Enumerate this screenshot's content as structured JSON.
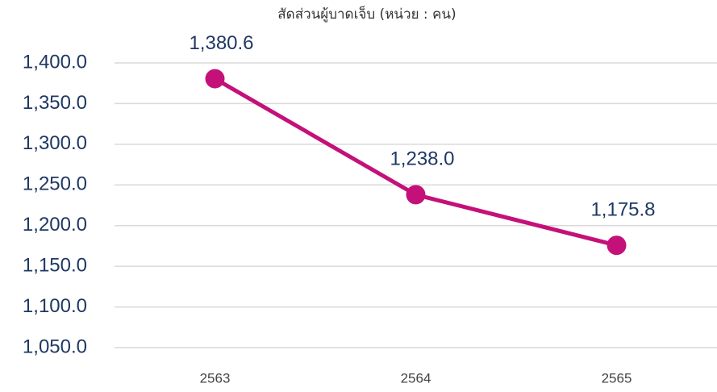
{
  "chart_data": {
    "type": "line",
    "title": "สัดส่วนผู้บาดเจ็บ (หน่วย : คน)",
    "categories": [
      "2563",
      "2564",
      "2565"
    ],
    "series": [
      {
        "name": "สัดส่วนผู้บาดเจ็บ",
        "color": "#c4117a",
        "values": [
          1380.6,
          1238.0,
          1175.8
        ],
        "value_labels": [
          "1,380.6",
          "1,238.0",
          "1,175.8"
        ]
      }
    ],
    "ylim": [
      1050,
      1400
    ],
    "yticks": [
      {
        "value": 1050,
        "label": "1,050.0"
      },
      {
        "value": 1100,
        "label": "1,100.0"
      },
      {
        "value": 1150,
        "label": "1,150.0"
      },
      {
        "value": 1200,
        "label": "1,200.0"
      },
      {
        "value": 1250,
        "label": "1,250.0"
      },
      {
        "value": 1300,
        "label": "1,300.0"
      },
      {
        "value": 1350,
        "label": "1,350.0"
      },
      {
        "value": 1400,
        "label": "1,400.0"
      }
    ],
    "grid": true
  }
}
